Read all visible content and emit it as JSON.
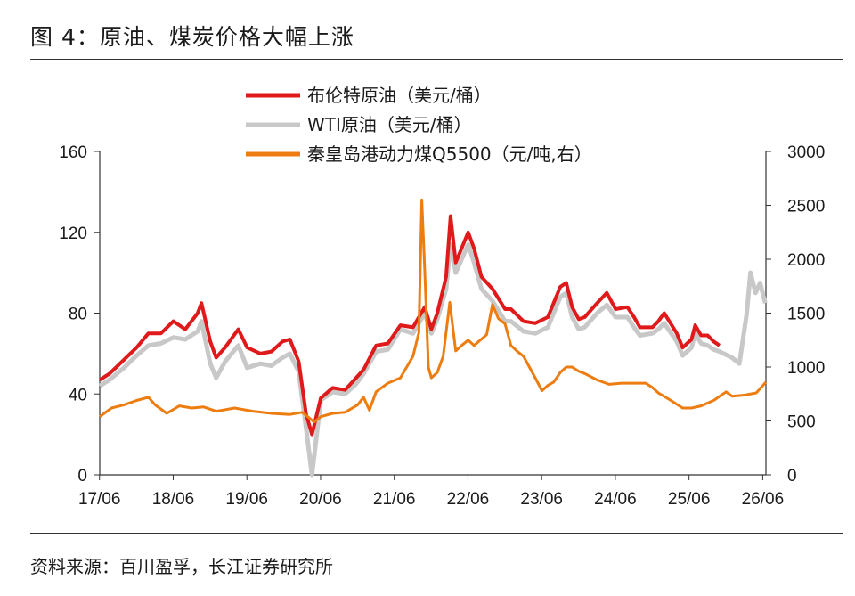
{
  "figure": {
    "title": "图 4：原油、煤炭价格大幅上涨",
    "source": "资料来源：百川盈孚，长江证券研究所"
  },
  "colors": {
    "brent": "#e0191b",
    "wti": "#c8c8c8",
    "coal": "#ed7d11",
    "axis": "#333333"
  },
  "chart_data": {
    "type": "line",
    "x_ticks": [
      "17/06",
      "18/06",
      "19/06",
      "20/06",
      "21/06",
      "22/06",
      "23/06",
      "24/06",
      "25/06",
      "26/06"
    ],
    "x_range": [
      2017.42,
      2026.46
    ],
    "y_left": {
      "range": [
        0,
        160
      ],
      "ticks": [
        0,
        40,
        80,
        120,
        160
      ]
    },
    "y_right": {
      "range": [
        0,
        3000
      ],
      "ticks": [
        0,
        500,
        1000,
        1500,
        2000,
        2500,
        3000
      ]
    },
    "grid": false,
    "legend_position": "top-center",
    "series": [
      {
        "name": "布伦特原油（美元/桶）",
        "axis": "left",
        "color": "#e0191b",
        "points": [
          [
            2017.42,
            47
          ],
          [
            2017.55,
            50
          ],
          [
            2017.75,
            57
          ],
          [
            2017.92,
            63
          ],
          [
            2018.08,
            70
          ],
          [
            2018.25,
            70
          ],
          [
            2018.42,
            76
          ],
          [
            2018.58,
            72
          ],
          [
            2018.75,
            80
          ],
          [
            2018.8,
            85
          ],
          [
            2018.92,
            66
          ],
          [
            2019.0,
            58
          ],
          [
            2019.12,
            63
          ],
          [
            2019.3,
            72
          ],
          [
            2019.42,
            63
          ],
          [
            2019.6,
            60
          ],
          [
            2019.75,
            61
          ],
          [
            2019.9,
            66
          ],
          [
            2020.0,
            67
          ],
          [
            2020.12,
            56
          ],
          [
            2020.22,
            30
          ],
          [
            2020.3,
            20
          ],
          [
            2020.42,
            38
          ],
          [
            2020.58,
            43
          ],
          [
            2020.75,
            42
          ],
          [
            2020.9,
            48
          ],
          [
            2021.0,
            52
          ],
          [
            2021.17,
            64
          ],
          [
            2021.33,
            65
          ],
          [
            2021.5,
            74
          ],
          [
            2021.67,
            73
          ],
          [
            2021.83,
            83
          ],
          [
            2021.92,
            72
          ],
          [
            2022.0,
            80
          ],
          [
            2022.12,
            98
          ],
          [
            2022.18,
            128
          ],
          [
            2022.25,
            105
          ],
          [
            2022.42,
            120
          ],
          [
            2022.5,
            112
          ],
          [
            2022.6,
            98
          ],
          [
            2022.75,
            92
          ],
          [
            2022.92,
            82
          ],
          [
            2023.0,
            82
          ],
          [
            2023.17,
            76
          ],
          [
            2023.33,
            75
          ],
          [
            2023.5,
            78
          ],
          [
            2023.67,
            93
          ],
          [
            2023.75,
            95
          ],
          [
            2023.83,
            83
          ],
          [
            2023.92,
            77
          ],
          [
            2024.0,
            78
          ],
          [
            2024.17,
            85
          ],
          [
            2024.3,
            90
          ],
          [
            2024.42,
            82
          ],
          [
            2024.58,
            83
          ],
          [
            2024.67,
            78
          ],
          [
            2024.75,
            73
          ],
          [
            2024.92,
            73
          ],
          [
            2025.0,
            76
          ],
          [
            2025.08,
            80
          ],
          [
            2025.25,
            70
          ],
          [
            2025.33,
            63
          ],
          [
            2025.45,
            67
          ],
          [
            2025.5,
            74
          ],
          [
            2025.58,
            69
          ],
          [
            2025.67,
            69
          ],
          [
            2025.75,
            66
          ],
          [
            2025.83,
            64
          ]
        ]
      },
      {
        "name": "WTI原油（美元/桶）",
        "axis": "left",
        "color": "#c8c8c8",
        "points": [
          [
            2017.42,
            44
          ],
          [
            2017.55,
            47
          ],
          [
            2017.75,
            53
          ],
          [
            2017.92,
            59
          ],
          [
            2018.08,
            64
          ],
          [
            2018.25,
            65
          ],
          [
            2018.42,
            68
          ],
          [
            2018.58,
            67
          ],
          [
            2018.75,
            71
          ],
          [
            2018.8,
            76
          ],
          [
            2018.92,
            55
          ],
          [
            2019.0,
            48
          ],
          [
            2019.12,
            56
          ],
          [
            2019.3,
            64
          ],
          [
            2019.42,
            53
          ],
          [
            2019.6,
            55
          ],
          [
            2019.75,
            54
          ],
          [
            2019.9,
            58
          ],
          [
            2020.0,
            60
          ],
          [
            2020.12,
            51
          ],
          [
            2020.22,
            23
          ],
          [
            2020.3,
            0
          ],
          [
            2020.42,
            37
          ],
          [
            2020.58,
            41
          ],
          [
            2020.75,
            40
          ],
          [
            2020.9,
            45
          ],
          [
            2021.0,
            50
          ],
          [
            2021.17,
            61
          ],
          [
            2021.33,
            62
          ],
          [
            2021.5,
            72
          ],
          [
            2021.67,
            70
          ],
          [
            2021.83,
            80
          ],
          [
            2021.92,
            70
          ],
          [
            2022.0,
            77
          ],
          [
            2022.12,
            92
          ],
          [
            2022.18,
            114
          ],
          [
            2022.25,
            100
          ],
          [
            2022.42,
            114
          ],
          [
            2022.5,
            105
          ],
          [
            2022.6,
            92
          ],
          [
            2022.75,
            86
          ],
          [
            2022.92,
            76
          ],
          [
            2023.0,
            76
          ],
          [
            2023.17,
            71
          ],
          [
            2023.33,
            70
          ],
          [
            2023.5,
            73
          ],
          [
            2023.67,
            88
          ],
          [
            2023.75,
            90
          ],
          [
            2023.83,
            78
          ],
          [
            2023.92,
            72
          ],
          [
            2024.0,
            73
          ],
          [
            2024.17,
            80
          ],
          [
            2024.3,
            84
          ],
          [
            2024.42,
            78
          ],
          [
            2024.58,
            78
          ],
          [
            2024.67,
            73
          ],
          [
            2024.75,
            69
          ],
          [
            2024.92,
            70
          ],
          [
            2025.0,
            72
          ],
          [
            2025.08,
            75
          ],
          [
            2025.25,
            66
          ],
          [
            2025.33,
            59
          ],
          [
            2025.45,
            63
          ],
          [
            2025.5,
            70
          ],
          [
            2025.58,
            65
          ],
          [
            2025.67,
            64
          ],
          [
            2025.75,
            62
          ],
          [
            2025.83,
            61
          ],
          [
            2026.0,
            58
          ],
          [
            2026.1,
            55
          ],
          [
            2026.2,
            80
          ],
          [
            2026.25,
            100
          ],
          [
            2026.32,
            90
          ],
          [
            2026.38,
            95
          ],
          [
            2026.45,
            85
          ]
        ]
      },
      {
        "name": "秦皇岛港动力煤Q5500（元/吨,右）",
        "axis": "right",
        "color": "#ed7d11",
        "points": [
          [
            2017.42,
            540
          ],
          [
            2017.58,
            620
          ],
          [
            2017.75,
            650
          ],
          [
            2017.92,
            690
          ],
          [
            2018.08,
            720
          ],
          [
            2018.17,
            650
          ],
          [
            2018.33,
            570
          ],
          [
            2018.5,
            640
          ],
          [
            2018.67,
            620
          ],
          [
            2018.83,
            630
          ],
          [
            2019.0,
            590
          ],
          [
            2019.25,
            620
          ],
          [
            2019.5,
            590
          ],
          [
            2019.75,
            570
          ],
          [
            2020.0,
            560
          ],
          [
            2020.17,
            580
          ],
          [
            2020.33,
            490
          ],
          [
            2020.42,
            540
          ],
          [
            2020.58,
            570
          ],
          [
            2020.75,
            580
          ],
          [
            2020.92,
            650
          ],
          [
            2021.0,
            720
          ],
          [
            2021.08,
            600
          ],
          [
            2021.17,
            770
          ],
          [
            2021.33,
            850
          ],
          [
            2021.5,
            900
          ],
          [
            2021.67,
            1100
          ],
          [
            2021.75,
            1320
          ],
          [
            2021.79,
            2550
          ],
          [
            2021.83,
            1900
          ],
          [
            2021.88,
            1000
          ],
          [
            2021.92,
            900
          ],
          [
            2022.0,
            950
          ],
          [
            2022.08,
            1100
          ],
          [
            2022.17,
            1600
          ],
          [
            2022.25,
            1150
          ],
          [
            2022.33,
            1200
          ],
          [
            2022.42,
            1250
          ],
          [
            2022.5,
            1200
          ],
          [
            2022.67,
            1300
          ],
          [
            2022.75,
            1580
          ],
          [
            2022.83,
            1450
          ],
          [
            2022.92,
            1400
          ],
          [
            2023.0,
            1200
          ],
          [
            2023.08,
            1150
          ],
          [
            2023.17,
            1100
          ],
          [
            2023.33,
            900
          ],
          [
            2023.42,
            780
          ],
          [
            2023.5,
            830
          ],
          [
            2023.58,
            860
          ],
          [
            2023.67,
            950
          ],
          [
            2023.75,
            1000
          ],
          [
            2023.83,
            1000
          ],
          [
            2023.92,
            960
          ],
          [
            2024.0,
            940
          ],
          [
            2024.17,
            880
          ],
          [
            2024.33,
            840
          ],
          [
            2024.5,
            850
          ],
          [
            2024.67,
            850
          ],
          [
            2024.83,
            850
          ],
          [
            2024.92,
            810
          ],
          [
            2025.0,
            760
          ],
          [
            2025.17,
            690
          ],
          [
            2025.33,
            620
          ],
          [
            2025.45,
            620
          ],
          [
            2025.58,
            640
          ],
          [
            2025.75,
            690
          ],
          [
            2025.92,
            770
          ],
          [
            2026.0,
            730
          ],
          [
            2026.17,
            740
          ],
          [
            2026.33,
            760
          ],
          [
            2026.46,
            860
          ]
        ]
      }
    ]
  }
}
